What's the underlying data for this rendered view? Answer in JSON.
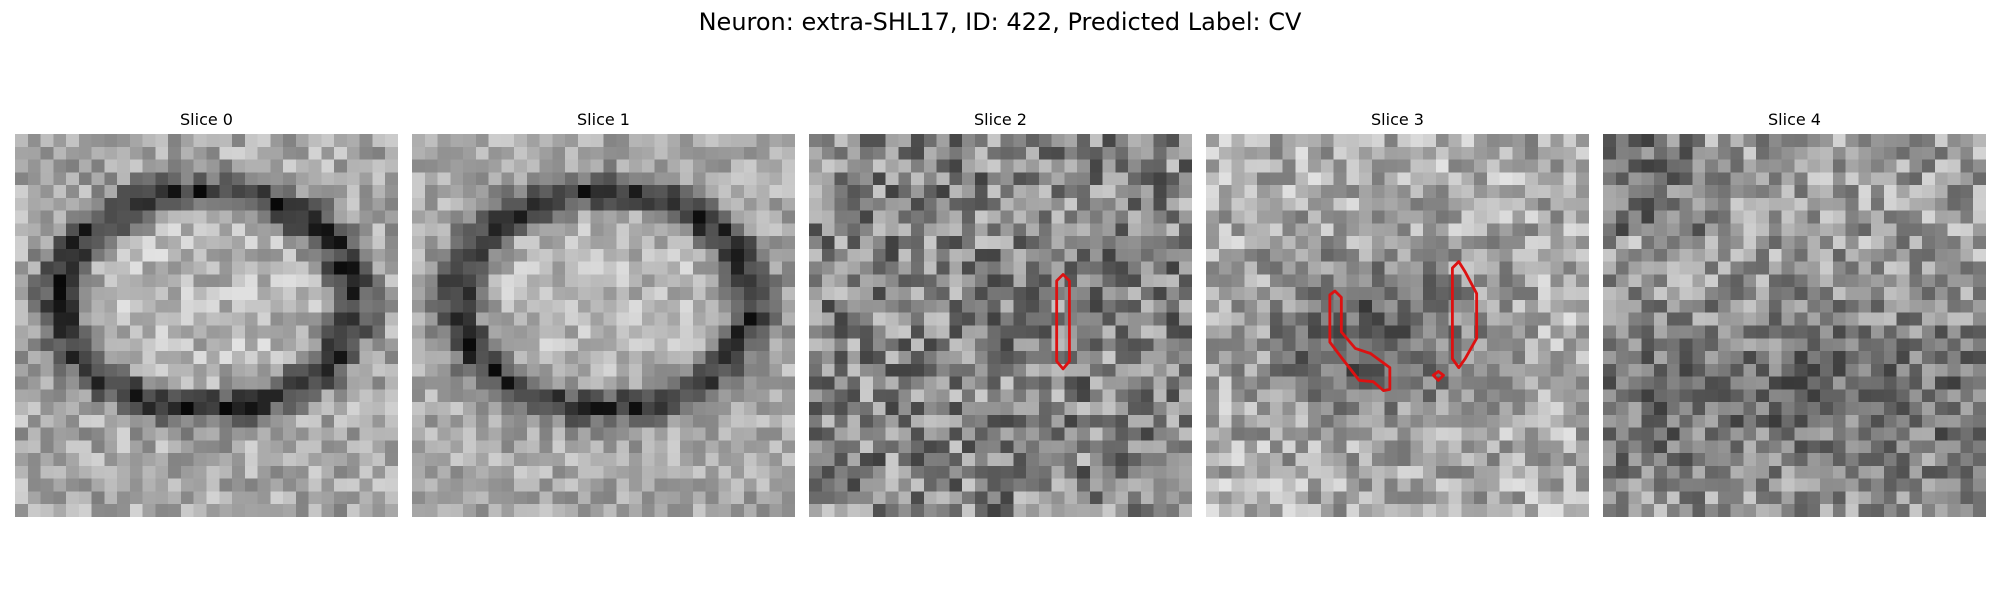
{
  "figure": {
    "suptitle": "Neuron: extra-SHL17, ID: 422, Predicted Label: CV",
    "contour_color": "#dd1111",
    "panels": [
      {
        "title": "Slice 0",
        "pattern": "ring",
        "contours": []
      },
      {
        "title": "Slice 1",
        "pattern": "ring-faint",
        "contours": []
      },
      {
        "title": "Slice 2",
        "pattern": "noise",
        "contours": [
          "vertical-sliver"
        ]
      },
      {
        "title": "Slice 3",
        "pattern": "dark-center",
        "contours": [
          "hook",
          "vertical-sliver",
          "small-diamond"
        ]
      },
      {
        "title": "Slice 4",
        "pattern": "noise-dark-lower",
        "contours": []
      }
    ]
  }
}
